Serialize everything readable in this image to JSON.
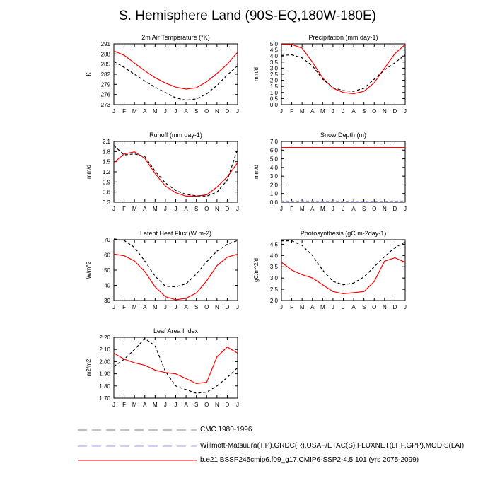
{
  "title": "S. Hemisphere Land (90S-EQ,180W-180E)",
  "months": [
    "J",
    "F",
    "M",
    "A",
    "M",
    "J",
    "J",
    "A",
    "S",
    "O",
    "N",
    "D",
    "J"
  ],
  "colors": {
    "model": "#ff0000",
    "obs": "#000000",
    "cmc": "#808080",
    "obs2": "#9999ff"
  },
  "legend": [
    {
      "label": "CMC 1980-1996",
      "color": "#808080",
      "style": "dashed"
    },
    {
      "label": "Willmott-Matsuura(T,P),GRDC(R),USAF/ETAC(S),FLUXNET(LHF,GPP),MODIS(LAI)",
      "color": "#9999ff",
      "style": "dashed"
    },
    {
      "label": "b.e21.BSSP245cmip6.f09_g17.CMIP6-SSP2-4.5.101 (yrs 2075-2099)",
      "color": "#ff0000",
      "style": "solid"
    }
  ],
  "chart_data": [
    {
      "type": "line",
      "title": "2m Air Temperature (°K)",
      "ylabel": "K",
      "ylim": [
        273,
        291
      ],
      "yticks": [
        "273",
        "276",
        "279",
        "282",
        "285",
        "288",
        "291"
      ],
      "x": [
        "J",
        "F",
        "M",
        "A",
        "M",
        "J",
        "J",
        "A",
        "S",
        "O",
        "N",
        "D",
        "J"
      ],
      "series": [
        {
          "name": "model",
          "style": "solid",
          "values": [
            288.9,
            287.6,
            285.3,
            283.0,
            281.0,
            279.4,
            278.2,
            277.6,
            278.0,
            279.8,
            282.2,
            285.0,
            288.5
          ]
        },
        {
          "name": "obs",
          "style": "dashed",
          "values": [
            285.8,
            284.0,
            282.0,
            280.0,
            278.2,
            276.6,
            275.0,
            274.3,
            274.7,
            276.2,
            278.7,
            281.8,
            284.5
          ]
        }
      ]
    },
    {
      "type": "line",
      "title": "Precipitation (mm day-1)",
      "ylabel": "mm/d",
      "ylim": [
        0,
        5
      ],
      "yticks": [
        "0.0",
        "0.5",
        "1.0",
        "1.5",
        "2.0",
        "2.5",
        "3.0",
        "3.5",
        "4.0",
        "4.5",
        "5.0"
      ],
      "x": [
        "J",
        "F",
        "M",
        "A",
        "M",
        "J",
        "J",
        "A",
        "S",
        "O",
        "N",
        "D",
        "J"
      ],
      "series": [
        {
          "name": "model",
          "style": "solid",
          "values": [
            4.95,
            4.95,
            4.65,
            3.5,
            2.2,
            1.35,
            1.0,
            0.9,
            1.1,
            1.8,
            3.0,
            4.2,
            4.95
          ]
        },
        {
          "name": "obs",
          "style": "dashed",
          "values": [
            4.05,
            4.1,
            3.85,
            3.2,
            2.1,
            1.4,
            1.15,
            1.1,
            1.35,
            2.1,
            2.85,
            3.45,
            4.1
          ]
        }
      ]
    },
    {
      "type": "line",
      "title": "Runoff (mm day-1)",
      "ylabel": "mm/d",
      "ylim": [
        0.3,
        2.1
      ],
      "yticks": [
        "0.3",
        "0.6",
        "0.9",
        "1.2",
        "1.5",
        "1.8",
        "2.1"
      ],
      "x": [
        "J",
        "F",
        "M",
        "A",
        "M",
        "J",
        "J",
        "A",
        "S",
        "O",
        "N",
        "D",
        "J"
      ],
      "series": [
        {
          "name": "model",
          "style": "solid",
          "values": [
            1.47,
            1.73,
            1.79,
            1.6,
            1.15,
            0.78,
            0.58,
            0.48,
            0.48,
            0.52,
            0.75,
            1.05,
            1.47
          ]
        },
        {
          "name": "obs",
          "style": "dashed",
          "values": [
            1.98,
            1.7,
            1.73,
            1.65,
            1.22,
            0.87,
            0.65,
            0.53,
            0.49,
            0.48,
            0.6,
            0.95,
            1.88
          ]
        }
      ]
    },
    {
      "type": "line",
      "title": "Snow Depth (m)",
      "ylabel": "mm/d",
      "ylim": [
        0,
        7
      ],
      "yticks": [
        "0.0",
        "1.0",
        "2.0",
        "3.0",
        "4.0",
        "5.0",
        "6.0",
        "7.0"
      ],
      "x": [
        "J",
        "F",
        "M",
        "A",
        "M",
        "J",
        "J",
        "A",
        "S",
        "O",
        "N",
        "D",
        "J"
      ],
      "series": [
        {
          "name": "model",
          "style": "solid",
          "values": [
            6.3,
            6.3,
            6.3,
            6.3,
            6.3,
            6.3,
            6.3,
            6.3,
            6.3,
            6.3,
            6.3,
            6.3,
            6.3
          ]
        },
        {
          "name": "cmc",
          "style": "dashed",
          "values": [
            0.05,
            0.05,
            0.05,
            0.05,
            0.05,
            0.05,
            0.06,
            0.06,
            0.06,
            0.05,
            0.05,
            0.05,
            0.05
          ]
        },
        {
          "name": "obs2",
          "style": "dashed",
          "values": [
            0.12,
            0.12,
            0.13,
            0.13,
            0.12,
            0.12,
            0.11,
            0.1,
            0.1,
            0.1,
            0.11,
            0.12,
            0.12
          ]
        }
      ]
    },
    {
      "type": "line",
      "title": "Latent Heat Flux (W m-2)",
      "ylabel": "W/m^2",
      "ylim": [
        30,
        70
      ],
      "yticks": [
        "30",
        "40",
        "50",
        "60",
        "70"
      ],
      "x": [
        "J",
        "F",
        "M",
        "A",
        "M",
        "J",
        "J",
        "A",
        "S",
        "O",
        "N",
        "D",
        "J"
      ],
      "series": [
        {
          "name": "model",
          "style": "solid",
          "values": [
            60.5,
            59.5,
            56.0,
            49.0,
            39.0,
            32.5,
            30.5,
            31.5,
            35.0,
            43.0,
            53.0,
            58.5,
            60.5
          ]
        },
        {
          "name": "obs",
          "style": "dashed",
          "values": [
            70.5,
            69.5,
            65.0,
            56.0,
            46.0,
            39.5,
            39.0,
            41.0,
            47.5,
            55.5,
            62.5,
            67.0,
            69.5
          ]
        }
      ]
    },
    {
      "type": "line",
      "title": "Photosynthesis (gC m-2day-1)",
      "ylabel": "gC/m^2/d",
      "ylim": [
        2.0,
        4.7
      ],
      "yticks": [
        "2.0",
        "2.5",
        "3.0",
        "3.5",
        "4.0",
        "4.5"
      ],
      "x": [
        "J",
        "F",
        "M",
        "A",
        "M",
        "J",
        "J",
        "A",
        "S",
        "O",
        "N",
        "D",
        "J"
      ],
      "series": [
        {
          "name": "model",
          "style": "solid",
          "values": [
            3.7,
            3.35,
            3.15,
            3.0,
            2.7,
            2.4,
            2.3,
            2.35,
            2.4,
            2.85,
            3.75,
            3.9,
            3.7
          ]
        },
        {
          "name": "obs",
          "style": "dashed",
          "values": [
            4.65,
            4.65,
            4.45,
            4.0,
            3.35,
            2.85,
            2.7,
            2.78,
            3.05,
            3.5,
            3.95,
            4.35,
            4.6
          ]
        }
      ]
    },
    {
      "type": "line",
      "title": "Leaf Area Index",
      "ylabel": "m2/m2",
      "ylim": [
        1.7,
        2.2
      ],
      "yticks": [
        "1.70",
        "1.80",
        "1.90",
        "2.00",
        "2.10",
        "2.20"
      ],
      "x": [
        "J",
        "F",
        "M",
        "A",
        "M",
        "J",
        "J",
        "A",
        "S",
        "O",
        "N",
        "D",
        "J"
      ],
      "series": [
        {
          "name": "model",
          "style": "solid",
          "values": [
            2.07,
            2.02,
            1.99,
            1.97,
            1.93,
            1.91,
            1.9,
            1.86,
            1.82,
            1.83,
            2.04,
            2.12,
            2.07
          ]
        },
        {
          "name": "obs",
          "style": "dashed",
          "values": [
            1.96,
            2.02,
            2.1,
            2.19,
            2.13,
            1.92,
            1.8,
            1.77,
            1.74,
            1.75,
            1.8,
            1.87,
            1.95
          ]
        }
      ]
    }
  ]
}
